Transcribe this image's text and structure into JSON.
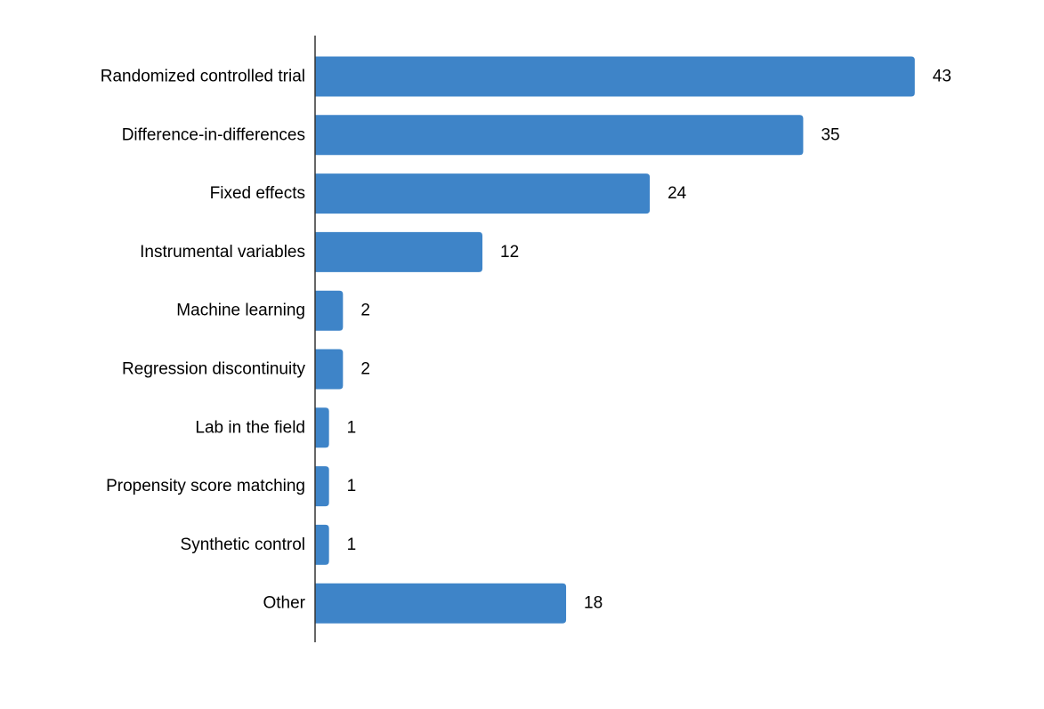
{
  "chart_data": {
    "type": "bar",
    "orientation": "horizontal",
    "categories": [
      "Randomized controlled trial",
      "Difference-in-differences",
      "Fixed effects",
      "Instrumental variables",
      "Machine learning",
      "Regression discontinuity",
      "Lab in the field",
      "Propensity score matching",
      "Synthetic control",
      "Other"
    ],
    "values": [
      43,
      35,
      24,
      12,
      2,
      2,
      1,
      1,
      1,
      18
    ],
    "data_labels": [
      "43",
      "35",
      "24",
      "12",
      "2",
      "2",
      "1",
      "1",
      "1",
      "18"
    ],
    "title": "",
    "xlabel": "",
    "ylabel": "",
    "xlim": [
      0,
      43
    ],
    "grid": false,
    "legend": "none",
    "bar_color": "#3e84c8"
  }
}
